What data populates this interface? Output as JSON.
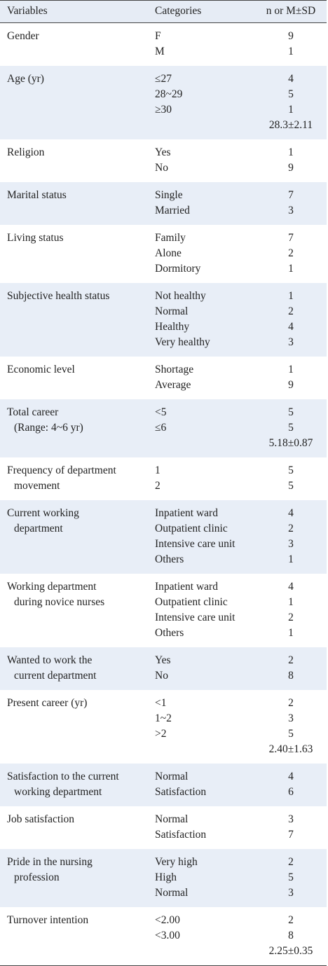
{
  "table": {
    "header": [
      "Variables",
      "Categories",
      "n or M±SD"
    ],
    "rows": [
      {
        "variable": [
          "Gender"
        ],
        "categories": [
          "F",
          "M"
        ],
        "values": [
          "9",
          "1"
        ]
      },
      {
        "variable": [
          "Age (yr)"
        ],
        "categories": [
          "≤27",
          "28~29",
          "≥30"
        ],
        "values": [
          "4",
          "5",
          "1"
        ],
        "summary": "28.3±2.11"
      },
      {
        "variable": [
          "Religion"
        ],
        "categories": [
          "Yes",
          "No"
        ],
        "values": [
          "1",
          "9"
        ]
      },
      {
        "variable": [
          "Marital status"
        ],
        "categories": [
          "Single",
          "Married"
        ],
        "values": [
          "7",
          "3"
        ]
      },
      {
        "variable": [
          "Living status"
        ],
        "categories": [
          "Family",
          "Alone",
          "Dormitory"
        ],
        "values": [
          "7",
          "2",
          "1"
        ]
      },
      {
        "variable": [
          "Subjective health status"
        ],
        "categories": [
          "Not healthy",
          "Normal",
          "Healthy",
          "Very healthy"
        ],
        "values": [
          "1",
          "2",
          "4",
          "3"
        ]
      },
      {
        "variable": [
          "Economic level"
        ],
        "categories": [
          "Shortage",
          "Average"
        ],
        "values": [
          "1",
          "9"
        ]
      },
      {
        "variable": [
          "Total career",
          "(Range: 4~6 yr)"
        ],
        "categories": [
          "<5",
          "≤6"
        ],
        "values": [
          "5",
          "5"
        ],
        "summary": "5.18±0.87"
      },
      {
        "variable": [
          "Frequency of department",
          "movement"
        ],
        "categories": [
          "1",
          "2"
        ],
        "values": [
          "5",
          "5"
        ]
      },
      {
        "variable": [
          "Current working",
          "department"
        ],
        "categories": [
          "Inpatient ward",
          "Outpatient clinic",
          "Intensive care unit",
          "Others"
        ],
        "values": [
          "4",
          "2",
          "3",
          "1"
        ]
      },
      {
        "variable": [
          "Working department",
          "during novice nurses"
        ],
        "categories": [
          "Inpatient ward",
          "Outpatient clinic",
          "Intensive care unit",
          "Others"
        ],
        "values": [
          "4",
          "1",
          "2",
          "1"
        ]
      },
      {
        "variable": [
          "Wanted to work the",
          "current department"
        ],
        "categories": [
          "Yes",
          "No"
        ],
        "values": [
          "2",
          "8"
        ]
      },
      {
        "variable": [
          "Present career (yr)"
        ],
        "categories": [
          "<1",
          "1~2",
          ">2"
        ],
        "values": [
          "2",
          "3",
          "5"
        ],
        "summary": "2.40±1.63"
      },
      {
        "variable": [
          "Satisfaction to the current",
          "working department"
        ],
        "categories": [
          "Normal",
          "Satisfaction"
        ],
        "values": [
          "4",
          "6"
        ]
      },
      {
        "variable": [
          "Job satisfaction"
        ],
        "categories": [
          "Normal",
          "Satisfaction"
        ],
        "values": [
          "3",
          "7"
        ]
      },
      {
        "variable": [
          "Pride in the nursing",
          "profession"
        ],
        "categories": [
          "Very high",
          "High",
          "Normal"
        ],
        "values": [
          "2",
          "5",
          "3"
        ]
      },
      {
        "variable": [
          "Turnover intention"
        ],
        "categories": [
          "<2.00",
          "<3.00"
        ],
        "values": [
          "2",
          "8"
        ],
        "summary": "2.25±0.35"
      }
    ]
  }
}
